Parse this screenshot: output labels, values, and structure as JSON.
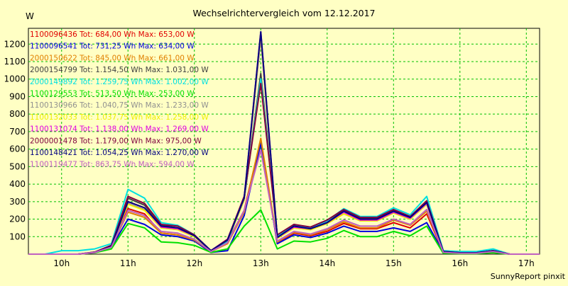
{
  "chart_data": {
    "type": "line",
    "title": "Wechselrichtervergleich vom 12.12.2017",
    "ylabel": "W",
    "xlabel": "",
    "footer": "SunnyReport pinxit",
    "grid": true,
    "legend_placement": "top-left",
    "xlim": [
      9.5,
      17.2
    ],
    "ylim": [
      0,
      1290
    ],
    "xticks": [
      10,
      11,
      12,
      13,
      14,
      15,
      16,
      17
    ],
    "xtick_labels": [
      "10h",
      "11h",
      "12h",
      "13h",
      "14h",
      "15h",
      "16h",
      "17h"
    ],
    "yticks": [
      100,
      200,
      300,
      400,
      500,
      600,
      700,
      800,
      900,
      1000,
      1100,
      1200
    ],
    "ytick_labels": [
      "100",
      "200",
      "300",
      "400",
      "500",
      "600",
      "700",
      "800",
      "900",
      "1000",
      "1100",
      "1200"
    ],
    "x": [
      9.5,
      9.75,
      10.0,
      10.25,
      10.5,
      10.75,
      11.0,
      11.25,
      11.5,
      11.75,
      12.0,
      12.25,
      12.5,
      12.75,
      13.0,
      13.25,
      13.5,
      13.75,
      14.0,
      14.25,
      14.5,
      14.75,
      15.0,
      15.25,
      15.5,
      15.75,
      16.0,
      16.25,
      16.5,
      16.75,
      17.0,
      17.2
    ],
    "series": [
      {
        "name": "1100096436 Tot: 684,00 Wh Max: 653,00 W",
        "color": "#e00000",
        "values": [
          0,
          0,
          0,
          0,
          10,
          40,
          260,
          230,
          120,
          110,
          80,
          15,
          70,
          250,
          653,
          60,
          120,
          105,
          130,
          175,
          145,
          145,
          180,
          150,
          230,
          10,
          5,
          5,
          15,
          0,
          0,
          0
        ]
      },
      {
        "name": "1100096541 Tot: 731,25 Wh Max: 634,00 W",
        "color": "#0000e0",
        "values": [
          0,
          0,
          0,
          0,
          10,
          40,
          200,
          170,
          110,
          100,
          75,
          10,
          20,
          220,
          634,
          60,
          110,
          95,
          120,
          160,
          130,
          130,
          150,
          130,
          180,
          10,
          5,
          5,
          15,
          0,
          0,
          0
        ]
      },
      {
        "name": "2000150622 Tot: 845,00 Wh Max: 661,00 W",
        "color": "#e08000",
        "values": [
          0,
          0,
          0,
          0,
          10,
          40,
          240,
          210,
          120,
          110,
          80,
          15,
          60,
          240,
          661,
          70,
          125,
          110,
          140,
          185,
          150,
          150,
          195,
          165,
          245,
          10,
          5,
          5,
          15,
          0,
          0,
          0
        ]
      },
      {
        "name": "2000154799 Tot: 1.154,50 Wh Max: 1.031,00 W",
        "color": "#404040",
        "values": [
          0,
          0,
          0,
          0,
          12,
          50,
          320,
          280,
          165,
          150,
          105,
          20,
          80,
          310,
          1031,
          105,
          165,
          150,
          190,
          250,
          205,
          205,
          250,
          210,
          300,
          15,
          8,
          8,
          20,
          0,
          0,
          0
        ]
      },
      {
        "name": "2000149892 Tot: 1.259,75 Wh Max: 1.002,00 W",
        "color": "#00e0e0",
        "values": [
          0,
          0,
          20,
          20,
          30,
          60,
          370,
          320,
          180,
          165,
          110,
          20,
          70,
          320,
          1002,
          100,
          170,
          150,
          190,
          260,
          215,
          215,
          265,
          225,
          330,
          20,
          15,
          15,
          30,
          0,
          0,
          0
        ]
      },
      {
        "name": "1100129553 Tot: 513,50 Wh Max: 253,00 W",
        "color": "#00e000",
        "values": [
          0,
          0,
          0,
          0,
          8,
          30,
          175,
          150,
          70,
          65,
          50,
          10,
          30,
          160,
          253,
          30,
          75,
          70,
          90,
          135,
          100,
          100,
          130,
          105,
          160,
          5,
          3,
          3,
          8,
          0,
          0,
          0
        ]
      },
      {
        "name": "1100130966 Tot: 1.040,75 Wh Max: 1.233,00 W",
        "color": "#909090",
        "values": [
          0,
          0,
          0,
          0,
          10,
          45,
          290,
          255,
          150,
          140,
          100,
          20,
          80,
          310,
          1233,
          90,
          150,
          140,
          175,
          230,
          190,
          190,
          235,
          200,
          285,
          15,
          8,
          8,
          20,
          0,
          0,
          0
        ]
      },
      {
        "name": "1100132033 Tot: 1.037,75 Wh Max: 1.258,00 W",
        "color": "#f0f000",
        "values": [
          0,
          0,
          0,
          0,
          10,
          45,
          285,
          250,
          150,
          140,
          100,
          20,
          80,
          310,
          1258,
          90,
          150,
          140,
          175,
          230,
          190,
          190,
          235,
          200,
          285,
          15,
          8,
          8,
          20,
          0,
          0,
          0
        ]
      },
      {
        "name": "1100131074 Tot: 1.138,00 Wh Max: 1.269,00 W",
        "color": "#e000e0",
        "values": [
          0,
          0,
          0,
          0,
          10,
          45,
          300,
          265,
          155,
          145,
          105,
          20,
          85,
          320,
          1269,
          95,
          155,
          145,
          180,
          240,
          195,
          195,
          240,
          205,
          290,
          15,
          8,
          8,
          20,
          0,
          0,
          0
        ]
      },
      {
        "name": "2000001478 Tot: 1.179,00 Wh Max: 975,00 W",
        "color": "#800040",
        "values": [
          0,
          0,
          0,
          0,
          12,
          50,
          330,
          290,
          170,
          160,
          110,
          20,
          85,
          330,
          975,
          110,
          170,
          155,
          195,
          255,
          210,
          210,
          255,
          215,
          305,
          15,
          8,
          8,
          20,
          0,
          0,
          0
        ]
      },
      {
        "name": "1100148421 Tot: 1.054,25 Wh Max: 1.270,00 W",
        "color": "#000080",
        "values": [
          0,
          0,
          0,
          0,
          10,
          45,
          300,
          265,
          160,
          150,
          105,
          20,
          80,
          320,
          1270,
          95,
          160,
          145,
          180,
          245,
          200,
          200,
          245,
          210,
          295,
          15,
          8,
          8,
          20,
          0,
          0,
          0
        ]
      },
      {
        "name": "1100119477 Tot: 863,75 Wh Max: 594,00 W",
        "color": "#c060c0",
        "values": [
          0,
          0,
          0,
          0,
          10,
          40,
          250,
          220,
          130,
          120,
          85,
          15,
          65,
          250,
          594,
          75,
          130,
          115,
          145,
          195,
          160,
          160,
          200,
          170,
          255,
          10,
          5,
          5,
          15,
          0,
          0,
          0
        ]
      }
    ]
  }
}
